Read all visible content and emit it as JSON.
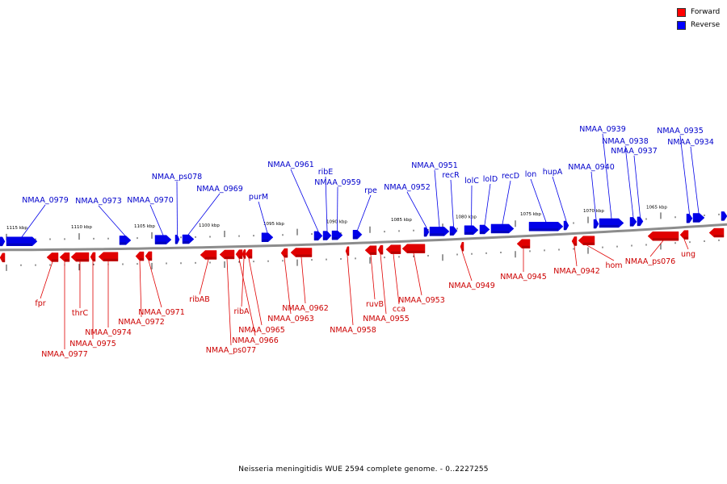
{
  "caption": "Neisseria meningitidis WUE 2594 complete genome. - 0..2227255",
  "colors": {
    "forward": "#e00000",
    "reverse": "#0000e8",
    "forward_label": "#cc0000",
    "reverse_label": "#0000cc",
    "backbone": "#8c8c8c"
  },
  "legend": [
    {
      "label": "Forward",
      "color": "#ff0000"
    },
    {
      "label": "Reverse",
      "color": "#0000ff"
    }
  ],
  "scale_labels": [
    "1115 kbp",
    "1110 kbp",
    "1105 kbp",
    "1100 kbp",
    "1095 kbp",
    "1090 kbp",
    "1085 kbp",
    "1080 kbp",
    "1075 kbp",
    "1070 kbp",
    "1065 kbp"
  ],
  "reverse_genes": [
    "NMAA_0979",
    "NMAA_0973",
    "NMAA_0970",
    "NMAA_ps078",
    "NMAA_0969",
    "purM",
    "NMAA_0961",
    "ribE",
    "NMAA_0959",
    "rpe",
    "NMAA_0952",
    "NMAA_0951",
    "recR",
    "lolC",
    "lolD",
    "recD",
    "lon",
    "hupA",
    "NMAA_0940",
    "NMAA_0939",
    "NMAA_0938",
    "NMAA_0937",
    "NMAA_0935",
    "NMAA_0934"
  ],
  "forward_genes": [
    "fpr",
    "NMAA_0977",
    "thrC",
    "NMAA_0975",
    "NMAA_0974",
    "NMAA_0972",
    "NMAA_0971",
    "ribAB",
    "NMAA_ps077",
    "NMAA_0966",
    "ribA",
    "NMAA_0965",
    "NMAA_0963",
    "NMAA_0962",
    "NMAA_0958",
    "ruvB",
    "NMAA_0955",
    "cca",
    "NMAA_0953",
    "NMAA_0949",
    "NMAA_0945",
    "NMAA_0942",
    "hom",
    "NMAA_ps076",
    "ung"
  ]
}
